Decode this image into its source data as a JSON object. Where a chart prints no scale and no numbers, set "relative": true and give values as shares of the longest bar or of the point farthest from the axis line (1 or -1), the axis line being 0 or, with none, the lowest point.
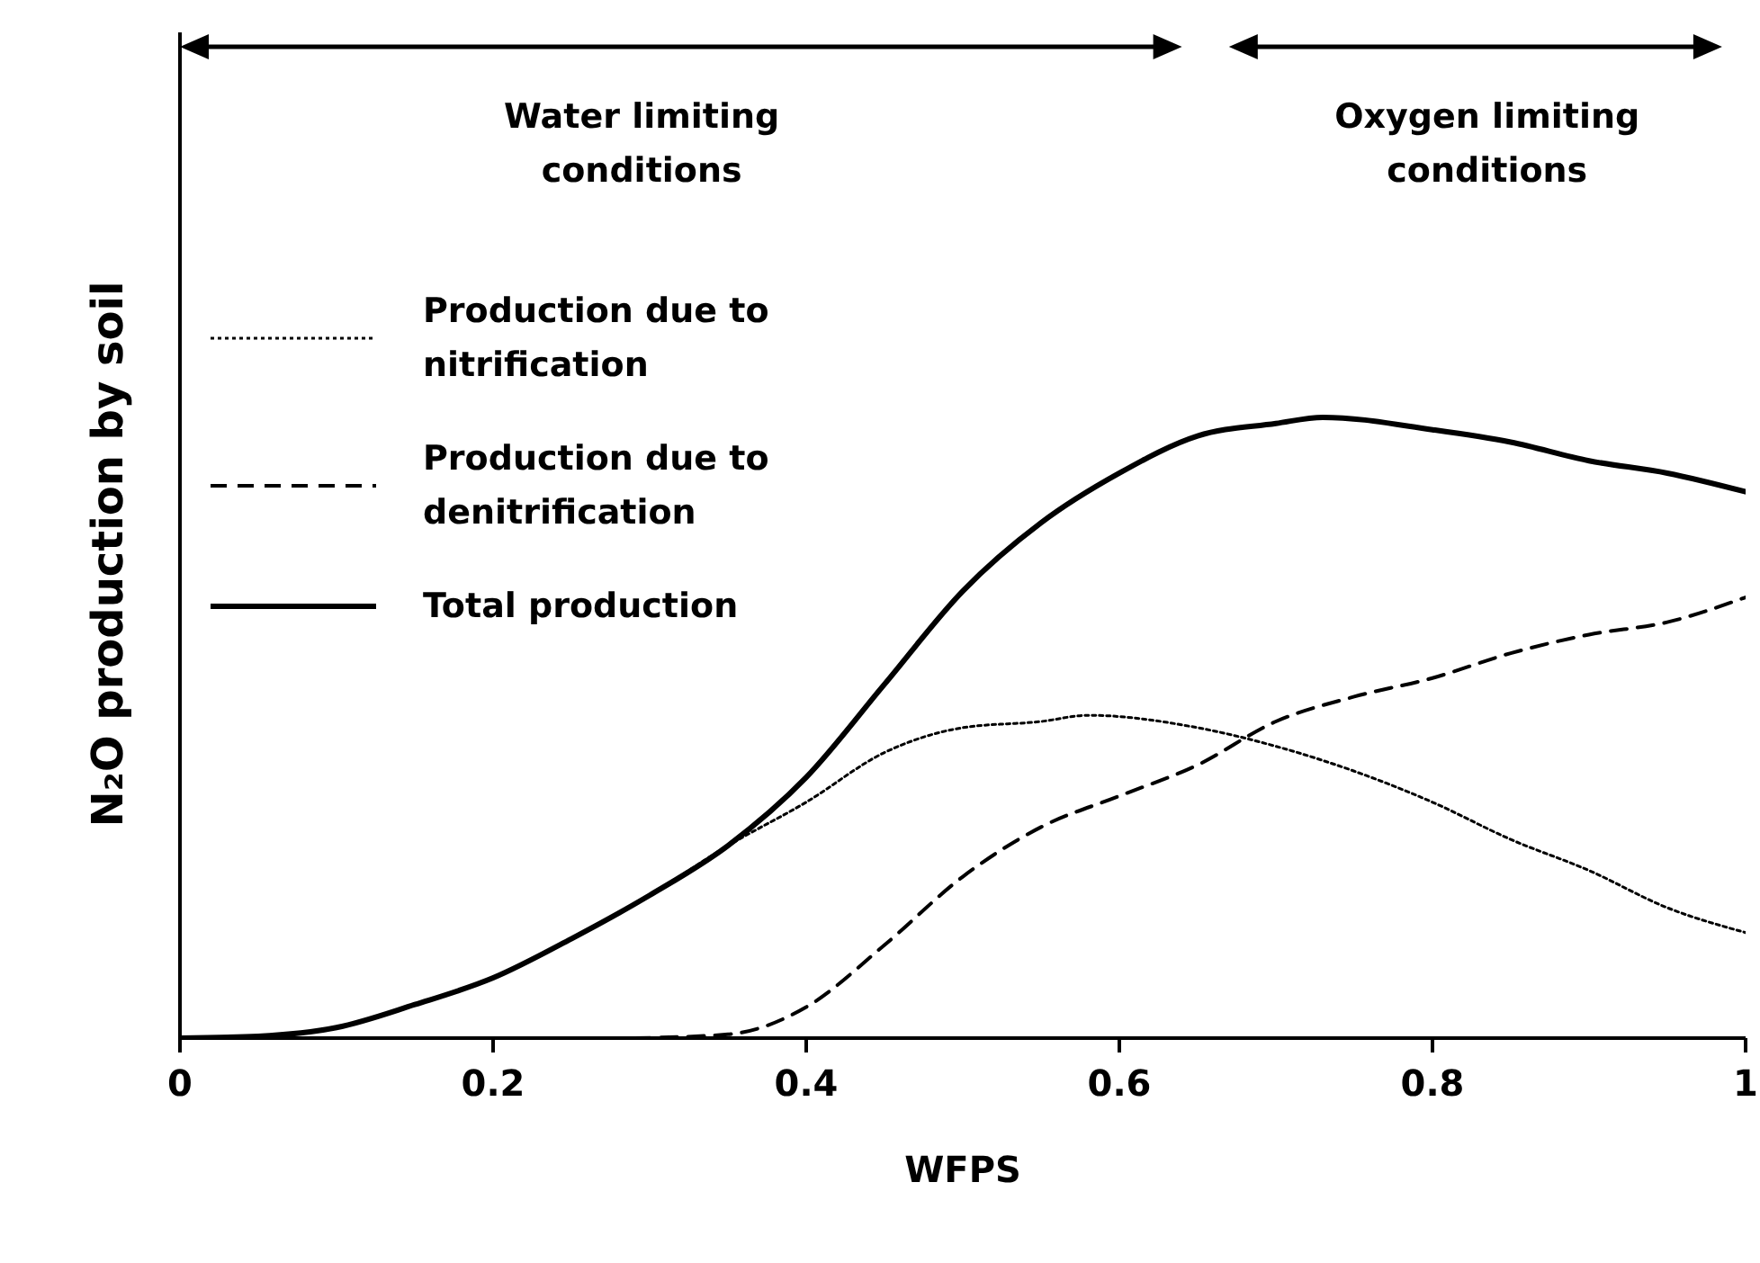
{
  "chart_data": {
    "type": "line",
    "relative": true,
    "xlabel": "WFPS",
    "ylabel": "N₂O production by soil",
    "xlim": [
      0,
      1
    ],
    "xticks": [
      0,
      0.2,
      0.4,
      0.6,
      0.8,
      1
    ],
    "grid": false,
    "legend": "left",
    "marker": "none",
    "annotations": [
      "Water limiting conditions",
      "Oxygen limiting conditions"
    ],
    "series": [
      {
        "name": "Production due to nitrification",
        "color": "#000000",
        "line_style": "dotted",
        "x": [
          0,
          0.05,
          0.1,
          0.15,
          0.2,
          0.25,
          0.3,
          0.35,
          0.4,
          0.45,
          0.5,
          0.55,
          0.58,
          0.65,
          0.7,
          0.75,
          0.8,
          0.85,
          0.9,
          0.95,
          1
        ],
        "values": [
          0,
          0.003,
          0.017,
          0.054,
          0.097,
          0.16,
          0.23,
          0.31,
          0.38,
          0.46,
          0.5,
          0.51,
          0.52,
          0.5,
          0.47,
          0.43,
          0.38,
          0.32,
          0.27,
          0.21,
          0.17
        ]
      },
      {
        "name": "Production due to denitrification",
        "color": "#000000",
        "line_style": "dashed",
        "x": [
          0.29,
          0.35,
          0.4,
          0.45,
          0.5,
          0.55,
          0.6,
          0.65,
          0.7,
          0.75,
          0.8,
          0.85,
          0.9,
          0.95,
          1
        ],
        "values": [
          0,
          0.006,
          0.05,
          0.15,
          0.26,
          0.34,
          0.39,
          0.44,
          0.51,
          0.55,
          0.58,
          0.62,
          0.65,
          0.67,
          0.71
        ]
      },
      {
        "name": "Total production",
        "color": "#000000",
        "line_style": "solid",
        "x": [
          0,
          0.05,
          0.1,
          0.15,
          0.2,
          0.25,
          0.3,
          0.35,
          0.4,
          0.45,
          0.5,
          0.55,
          0.6,
          0.65,
          0.7,
          0.73,
          0.8,
          0.85,
          0.9,
          0.95,
          1
        ],
        "values": [
          0,
          0.003,
          0.017,
          0.054,
          0.097,
          0.16,
          0.23,
          0.31,
          0.42,
          0.57,
          0.72,
          0.83,
          0.91,
          0.97,
          0.99,
          1,
          0.98,
          0.96,
          0.93,
          0.91,
          0.88
        ]
      }
    ]
  }
}
